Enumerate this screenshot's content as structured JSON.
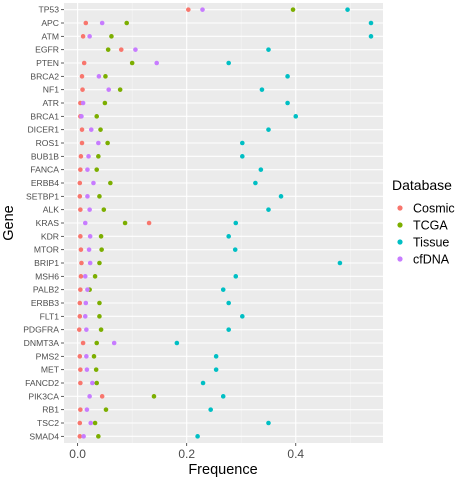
{
  "chart_data": {
    "type": "scatter",
    "xlabel": "Frequence",
    "ylabel": "Gene",
    "xlim": [
      -0.025,
      0.56
    ],
    "x_ticks": [
      0.0,
      0.2,
      0.4
    ],
    "x_tick_labels": [
      "0.0",
      "0.2",
      "0.4"
    ],
    "grid": true,
    "legend": {
      "title": "Database",
      "position": "right"
    },
    "categories": [
      "TP53",
      "APC",
      "ATM",
      "EGFR",
      "PTEN",
      "BRCA2",
      "NF1",
      "ATR",
      "BRCA1",
      "DICER1",
      "ROS1",
      "BUB1B",
      "FANCA",
      "ERBB4",
      "SETBP1",
      "ALK",
      "KRAS",
      "KDR",
      "MTOR",
      "BRIP1",
      "MSH6",
      "PALB2",
      "ERBB3",
      "FLT1",
      "PDGFRA",
      "DNMT3A",
      "PMS2",
      "MET",
      "FANCD2",
      "PIK3CA",
      "RB1",
      "TSC2",
      "SMAD4"
    ],
    "series": [
      {
        "name": "Cosmic",
        "color": "#F8766D",
        "values": [
          0.203,
          0.015,
          0.01,
          0.08,
          0.012,
          0.008,
          0.009,
          0.005,
          0.005,
          0.008,
          0.008,
          0.006,
          0.005,
          0.004,
          0.004,
          0.005,
          0.131,
          0.005,
          0.006,
          0.007,
          0.006,
          0.005,
          0.004,
          0.004,
          0.003,
          0.01,
          0.004,
          0.005,
          0.005,
          0.045,
          0.005,
          0.004,
          0.004
        ]
      },
      {
        "name": "TCGA",
        "color": "#7CAE00",
        "values": [
          0.395,
          0.09,
          0.062,
          0.056,
          0.1,
          0.051,
          0.078,
          0.05,
          0.035,
          0.042,
          0.055,
          0.038,
          0.035,
          0.06,
          0.04,
          0.048,
          0.087,
          0.043,
          0.044,
          0.04,
          0.032,
          0.022,
          0.04,
          0.04,
          0.043,
          0.035,
          0.03,
          0.034,
          0.035,
          0.14,
          0.052,
          0.032,
          0.038
        ]
      },
      {
        "name": "Tissue",
        "color": "#00BFC4",
        "values": [
          0.495,
          0.538,
          0.538,
          0.35,
          0.277,
          0.385,
          0.338,
          0.385,
          0.4,
          0.35,
          0.302,
          0.302,
          0.336,
          0.326,
          0.373,
          0.35,
          0.29,
          0.277,
          0.289,
          0.481,
          0.29,
          0.267,
          0.277,
          0.302,
          0.277,
          0.182,
          0.254,
          0.254,
          0.23,
          0.267,
          0.244,
          0.35,
          0.22
        ]
      },
      {
        "name": "cfDNA",
        "color": "#C77CFF",
        "values": [
          0.229,
          0.045,
          0.022,
          0.106,
          0.145,
          0.039,
          0.057,
          0.01,
          0.007,
          0.025,
          0.038,
          0.02,
          0.018,
          0.029,
          0.018,
          0.022,
          0.014,
          0.023,
          0.021,
          0.023,
          0.014,
          0.018,
          0.015,
          0.014,
          0.016,
          0.067,
          0.016,
          0.017,
          0.027,
          0.022,
          0.017,
          0.024,
          0.011
        ]
      }
    ]
  }
}
